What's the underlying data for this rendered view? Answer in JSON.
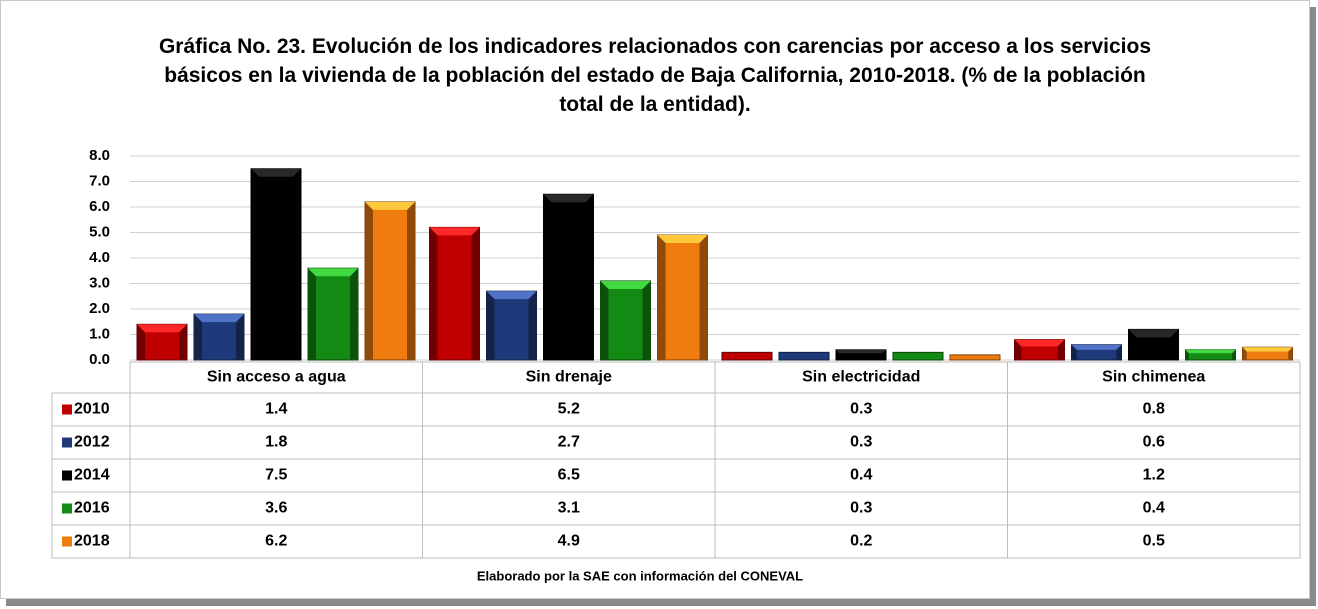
{
  "chart_data": {
    "type": "bar",
    "title": "Gráfica No. 23. Evolución de los indicadores relacionados con carencias por acceso a los servicios básicos en la vivienda de la población del estado de Baja California, 2010-2018. (% de la población total de la entidad).",
    "categories": [
      "Sin acceso a agua",
      "Sin drenaje",
      "Sin electricidad",
      "Sin chimenea"
    ],
    "series": [
      {
        "name": "2010",
        "color": "#c00000",
        "values": [
          1.4,
          5.2,
          0.3,
          0.8
        ]
      },
      {
        "name": "2012",
        "color": "#1f3a7a",
        "values": [
          1.8,
          2.7,
          0.3,
          0.6
        ]
      },
      {
        "name": "2014",
        "color": "#000000",
        "values": [
          7.5,
          6.5,
          0.4,
          1.2
        ]
      },
      {
        "name": "2016",
        "color": "#138a13",
        "values": [
          3.6,
          3.1,
          0.3,
          0.4
        ]
      },
      {
        "name": "2018",
        "color": "#f07c10",
        "values": [
          6.2,
          4.9,
          0.2,
          0.5
        ]
      }
    ],
    "ylim": [
      0,
      8
    ],
    "yticks": [
      {
        "value": 0,
        "label": "0.0"
      },
      {
        "value": 1,
        "label": "1.0"
      },
      {
        "value": 2,
        "label": "2.0"
      },
      {
        "value": 3,
        "label": "3.0"
      },
      {
        "value": 4,
        "label": "4.0"
      },
      {
        "value": 5,
        "label": "5.0"
      },
      {
        "value": 6,
        "label": "6.0"
      },
      {
        "value": 7,
        "label": "7.0"
      },
      {
        "value": 8,
        "label": "8.0"
      }
    ],
    "grid": true,
    "source": "Elaborado por la SAE con información del CONEVAL"
  }
}
